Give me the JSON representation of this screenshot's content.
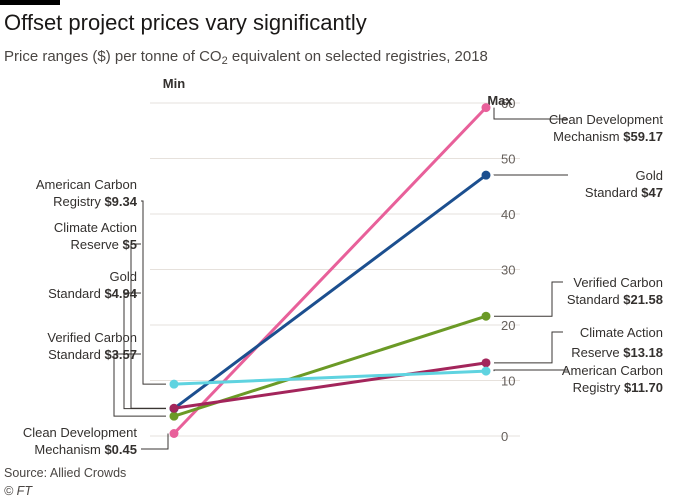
{
  "title": "Offset project prices vary significantly",
  "subtitle_pre": "Price ranges ($) per tonne of CO",
  "subtitle_sub": "2",
  "subtitle_post": " equivalent on selected registries, 2018",
  "source": "Source: Allied Crowds",
  "credit": "© FT",
  "chart_data": {
    "type": "line",
    "title": "Offset project prices vary significantly",
    "columns": [
      "Min",
      "Max"
    ],
    "ylim": [
      0,
      60
    ],
    "yticks": [
      0,
      10,
      20,
      30,
      40,
      50,
      60
    ],
    "grid": true,
    "series": [
      {
        "name_lines": [
          "Clean Development",
          "Mechanism"
        ],
        "min": 0.45,
        "max": 59.17,
        "min_label": "$0.45",
        "max_label": "$59.17",
        "color": "#e8609a"
      },
      {
        "name_lines": [
          "Gold",
          "Standard"
        ],
        "min": 4.94,
        "max": 47,
        "min_label": "$4.94",
        "max_label": "$47",
        "color": "#1c4f8f"
      },
      {
        "name_lines": [
          "Verified Carbon",
          "Standard"
        ],
        "min": 3.57,
        "max": 21.58,
        "min_label": "$3.57",
        "max_label": "$21.58",
        "color": "#6b9a26"
      },
      {
        "name_lines": [
          "Climate Action",
          "Reserve"
        ],
        "min": 5,
        "max": 13.18,
        "min_label": "$5",
        "max_label": "$13.18",
        "color": "#a3255b"
      },
      {
        "name_lines": [
          "American Carbon",
          "Registry"
        ],
        "min": 9.34,
        "max": 11.7,
        "min_label": "$9.34",
        "max_label": "$11.70",
        "color": "#5fd3e0"
      }
    ]
  }
}
